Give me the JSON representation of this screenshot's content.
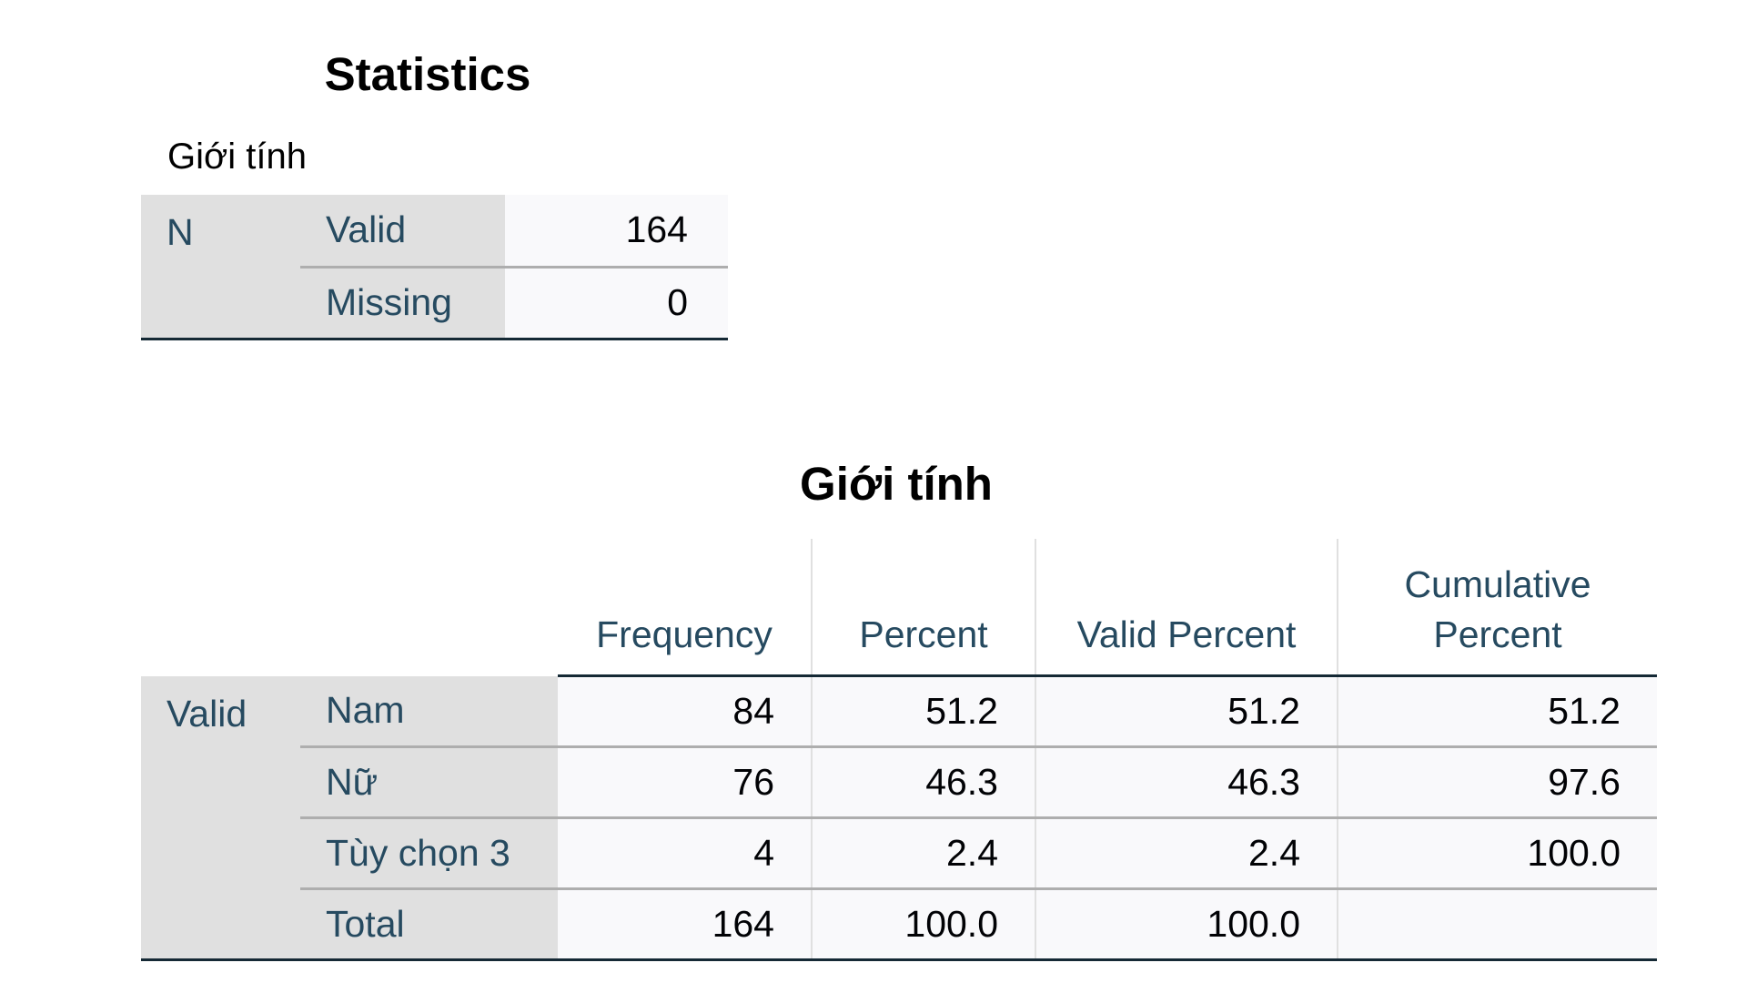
{
  "statistics": {
    "title": "Statistics",
    "variable": "Giới tính",
    "group_label": "N",
    "rows": [
      {
        "label": "Valid",
        "value": "164"
      },
      {
        "label": "Missing",
        "value": "0"
      }
    ]
  },
  "frequency": {
    "title": "Giới tính",
    "columns": {
      "frequency": "Frequency",
      "percent": "Percent",
      "valid_percent": "Valid Percent",
      "cumulative_percent_line1": "Cumulative",
      "cumulative_percent_line2": "Percent"
    },
    "group_label": "Valid",
    "rows": [
      {
        "label": "Nam",
        "frequency": "84",
        "percent": "51.2",
        "valid_percent": "51.2",
        "cumulative_percent": "51.2"
      },
      {
        "label": "Nữ",
        "frequency": "76",
        "percent": "46.3",
        "valid_percent": "46.3",
        "cumulative_percent": "97.6"
      },
      {
        "label": "Tùy chọn 3",
        "frequency": "4",
        "percent": "2.4",
        "valid_percent": "2.4",
        "cumulative_percent": "100.0"
      },
      {
        "label": "Total",
        "frequency": "164",
        "percent": "100.0",
        "valid_percent": "100.0",
        "cumulative_percent": ""
      }
    ]
  }
}
